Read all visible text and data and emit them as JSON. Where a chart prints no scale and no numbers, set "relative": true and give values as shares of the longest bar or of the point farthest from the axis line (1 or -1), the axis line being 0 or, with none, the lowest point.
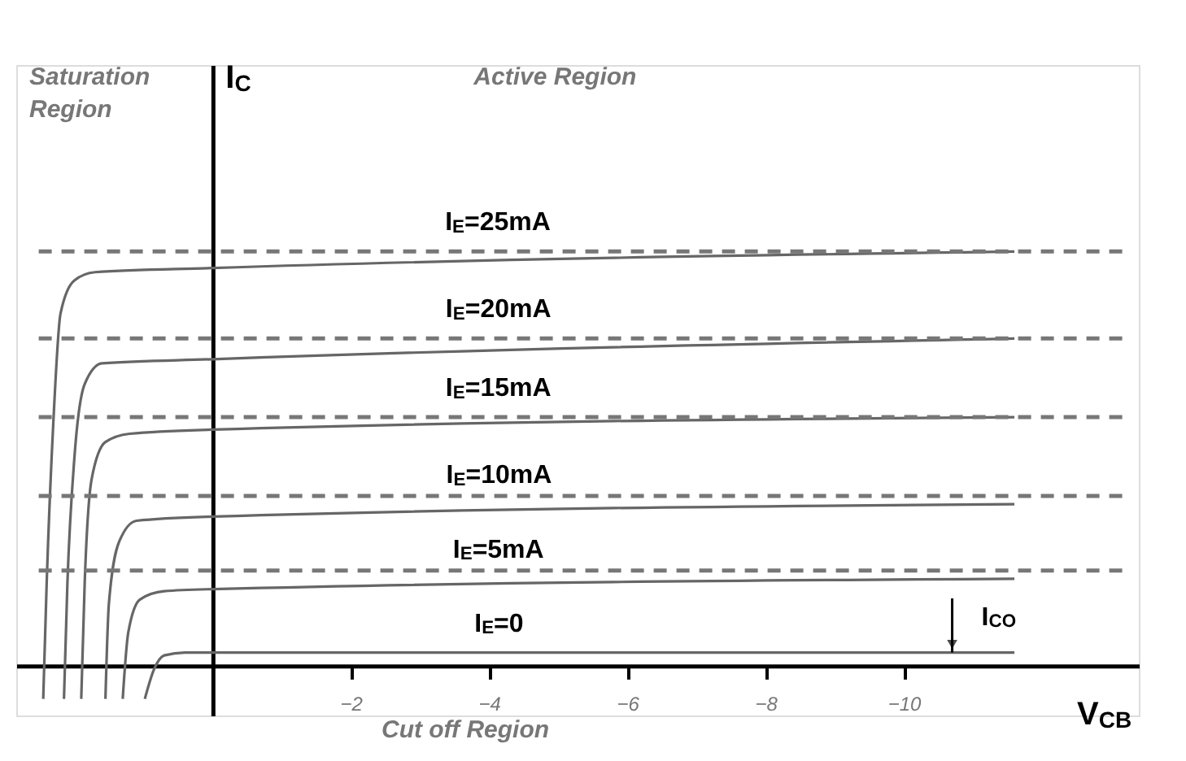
{
  "chart_data": {
    "type": "line",
    "relative": true,
    "xlabel": "V$_{CB}$",
    "ylabel": "I$_{C}$",
    "xlim": [
      2.84,
      -13.4
    ],
    "xticks": [
      -2,
      -4,
      -6,
      -8,
      -10
    ],
    "tick_labels": "x",
    "grid": false,
    "legend": false,
    "marker": "none",
    "line_style": "solid",
    "series": [
      {
        "name": "I$_{E}$=0",
        "color": "#666666",
        "x": [
          0.98,
          0.85,
          0.7,
          0.4,
          -11.6
        ],
        "values": [
          -0.08,
          -0.01,
          0.025,
          0.032,
          0.032
        ]
      },
      {
        "name": "I$_{E}$=5mA",
        "color": "#666666",
        "x": [
          1.3,
          1.22,
          1.05,
          0.7,
          0,
          -11.6
        ],
        "values": [
          -0.08,
          0.08,
          0.16,
          0.18,
          0.185,
          0.21
        ]
      },
      {
        "name": "I$_{E}$=10mA",
        "color": "#666666",
        "x": [
          1.55,
          1.5,
          1.35,
          1.1,
          0,
          -11.6
        ],
        "values": [
          -0.08,
          0.15,
          0.3,
          0.35,
          0.36,
          0.39
        ]
      },
      {
        "name": "I$_{E}$=15mA",
        "color": "#666666",
        "x": [
          1.9,
          1.85,
          1.75,
          1.55,
          1.2,
          0,
          -11.6
        ],
        "values": [
          -0.08,
          0.2,
          0.45,
          0.54,
          0.56,
          0.57,
          0.6
        ]
      },
      {
        "name": "I$_{E}$=20mA",
        "color": "#666666",
        "x": [
          2.15,
          2.1,
          2.0,
          1.85,
          1.6,
          0,
          -11.6
        ],
        "values": [
          -0.08,
          0.2,
          0.5,
          0.68,
          0.73,
          0.74,
          0.79
        ]
      },
      {
        "name": "I$_{E}$=25mA",
        "color": "#666666",
        "x": [
          2.45,
          2.4,
          2.3,
          2.2,
          2.0,
          1.7,
          0,
          -11.6
        ],
        "values": [
          -0.08,
          0.2,
          0.6,
          0.85,
          0.93,
          0.95,
          0.96,
          1.0
        ]
      }
    ],
    "ref_lines": [
      {
        "axis": "y",
        "value": 1.0,
        "color": "#777777",
        "line_style": "dashed"
      },
      {
        "axis": "y",
        "value": 0.79,
        "color": "#777777",
        "line_style": "dashed"
      },
      {
        "axis": "y",
        "value": 0.6,
        "color": "#777777",
        "line_style": "dashed"
      },
      {
        "axis": "y",
        "value": 0.41,
        "color": "#777777",
        "line_style": "dashed"
      },
      {
        "axis": "y",
        "value": 0.23,
        "color": "#777777",
        "line_style": "dashed"
      }
    ],
    "annotations": [
      "Saturation Region",
      "Active Region",
      "Cut off Region",
      {
        "text": "I$_{CO}$",
        "x": -10.7,
        "y": 0.032
      }
    ]
  }
}
